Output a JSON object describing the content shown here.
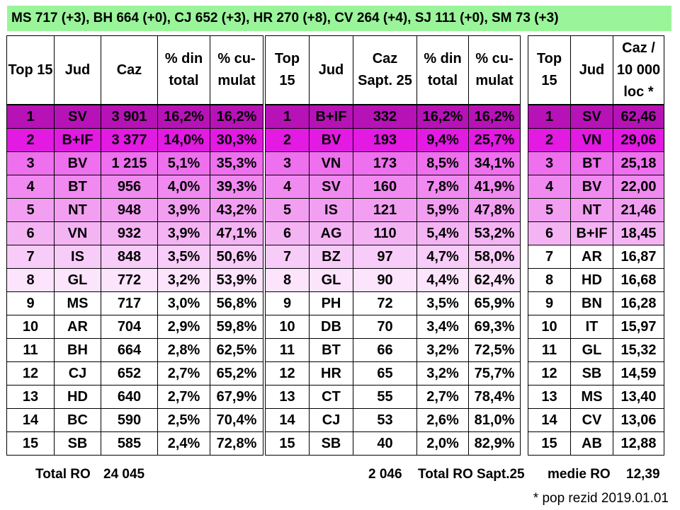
{
  "banner": "MS 717 (+3), BH 664 (+0), CJ 652 (+3), HR 270 (+8), CV 264 (+4), SJ 111 (+0), SM 73 (+3)",
  "colors": {
    "banner_bg": "#9af59a",
    "row_shades": [
      "#b612b6",
      "#e21ae2",
      "#ee70ee",
      "#f089f0",
      "#f29ff2",
      "#f4b4f4",
      "#f8ccf8",
      "#fce4fc"
    ]
  },
  "table1": {
    "headers": [
      "Top 15",
      "Jud",
      "Caz",
      "% din total",
      "% cu-mulat"
    ],
    "rows": [
      [
        "1",
        "SV",
        "3 901",
        "16,2%",
        "16,2%"
      ],
      [
        "2",
        "B+IF",
        "3 377",
        "14,0%",
        "30,3%"
      ],
      [
        "3",
        "BV",
        "1 215",
        "5,1%",
        "35,3%"
      ],
      [
        "4",
        "BT",
        "956",
        "4,0%",
        "39,3%"
      ],
      [
        "5",
        "NT",
        "948",
        "3,9%",
        "43,2%"
      ],
      [
        "6",
        "VN",
        "932",
        "3,9%",
        "47,1%"
      ],
      [
        "7",
        "IS",
        "848",
        "3,5%",
        "50,6%"
      ],
      [
        "8",
        "GL",
        "772",
        "3,2%",
        "53,9%"
      ],
      [
        "9",
        "MS",
        "717",
        "3,0%",
        "56,8%"
      ],
      [
        "10",
        "AR",
        "704",
        "2,9%",
        "59,8%"
      ],
      [
        "11",
        "BH",
        "664",
        "2,8%",
        "62,5%"
      ],
      [
        "12",
        "CJ",
        "652",
        "2,7%",
        "65,2%"
      ],
      [
        "13",
        "HD",
        "640",
        "2,7%",
        "67,9%"
      ],
      [
        "14",
        "BC",
        "590",
        "2,5%",
        "70,4%"
      ],
      [
        "15",
        "SB",
        "585",
        "2,4%",
        "72,8%"
      ]
    ],
    "footer_label": "Total RO",
    "footer_value": "24 045"
  },
  "table2": {
    "headers": [
      "Top 15",
      "Jud",
      "Caz Sapt. 25",
      "% din total",
      "% cu-mulat"
    ],
    "rows": [
      [
        "1",
        "B+IF",
        "332",
        "16,2%",
        "16,2%"
      ],
      [
        "2",
        "BV",
        "193",
        "9,4%",
        "25,7%"
      ],
      [
        "3",
        "VN",
        "173",
        "8,5%",
        "34,1%"
      ],
      [
        "4",
        "SV",
        "160",
        "7,8%",
        "41,9%"
      ],
      [
        "5",
        "IS",
        "121",
        "5,9%",
        "47,8%"
      ],
      [
        "6",
        "AG",
        "110",
        "5,4%",
        "53,2%"
      ],
      [
        "7",
        "BZ",
        "97",
        "4,7%",
        "58,0%"
      ],
      [
        "8",
        "GL",
        "90",
        "4,4%",
        "62,4%"
      ],
      [
        "9",
        "PH",
        "72",
        "3,5%",
        "65,9%"
      ],
      [
        "10",
        "DB",
        "70",
        "3,4%",
        "69,3%"
      ],
      [
        "11",
        "BT",
        "66",
        "3,2%",
        "72,5%"
      ],
      [
        "12",
        "HR",
        "65",
        "3,2%",
        "75,7%"
      ],
      [
        "13",
        "CT",
        "55",
        "2,7%",
        "78,4%"
      ],
      [
        "14",
        "CJ",
        "53",
        "2,6%",
        "81,0%"
      ],
      [
        "15",
        "SB",
        "40",
        "2,0%",
        "82,9%"
      ]
    ],
    "footer_value": "2 046",
    "footer_label": "Total RO Sapt.25"
  },
  "table3": {
    "headers": [
      "Top 15",
      "Jud",
      "Caz / 10 000 loc *"
    ],
    "rows": [
      [
        "1",
        "SV",
        "62,46"
      ],
      [
        "2",
        "VN",
        "29,06"
      ],
      [
        "3",
        "BT",
        "25,18"
      ],
      [
        "4",
        "BV",
        "22,00"
      ],
      [
        "5",
        "NT",
        "21,46"
      ],
      [
        "6",
        "B+IF",
        "18,45"
      ],
      [
        "7",
        "AR",
        "16,87"
      ],
      [
        "8",
        "HD",
        "16,68"
      ],
      [
        "9",
        "BN",
        "16,28"
      ],
      [
        "10",
        "IT",
        "15,97"
      ],
      [
        "11",
        "GL",
        "15,32"
      ],
      [
        "12",
        "SB",
        "14,59"
      ],
      [
        "13",
        "MS",
        "13,40"
      ],
      [
        "14",
        "CV",
        "13,06"
      ],
      [
        "15",
        "AB",
        "12,88"
      ]
    ],
    "footer_label": "medie RO",
    "footer_value": "12,39"
  },
  "note": "* pop rezid 2019.01.01"
}
